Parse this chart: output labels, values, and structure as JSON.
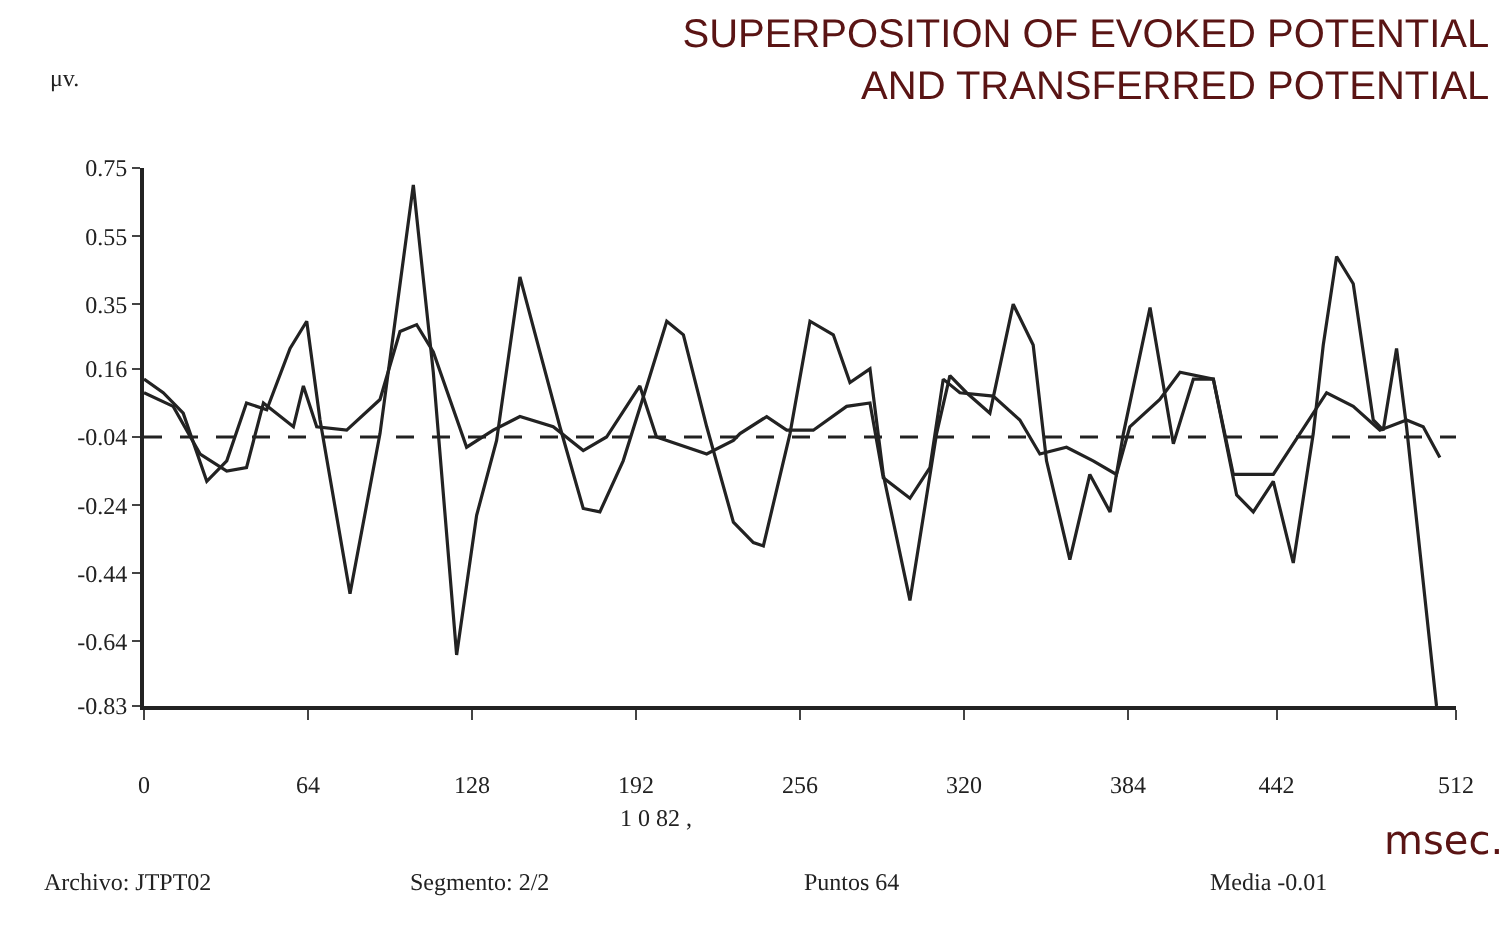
{
  "chart_data": {
    "type": "line",
    "title": "SUPERPOSITION OF EVOKED POTENTIAL\nAND TRANSFERRED POTENTIAL",
    "ylabel": "μv.",
    "xlabel": "msec.",
    "series": [
      {
        "color": "#222222",
        "x": [
          0,
          7.5,
          15.3,
          24.5,
          32.3,
          40,
          47.9,
          57,
          63.5,
          68.7,
          80.4,
          92.1,
          105.1,
          112.9,
          122,
          129.8,
          137.6,
          146.7,
          154.5,
          162.3,
          171.4,
          177.9,
          187,
          196.2,
          204,
          210.5,
          219.6,
          230,
          237.8,
          241.7,
          252.1,
          259.9,
          269,
          275.5,
          283.3,
          288.5,
          298.9,
          309.3,
          314.5,
          321,
          330.1,
          339.2,
          347,
          352.2,
          361.3,
          369.1,
          377,
          382.2,
          392.6,
          401.7,
          409.5,
          417.3,
          426.4,
          432.9,
          440.7,
          448.5,
          456.3,
          460.2,
          465.4,
          471.9,
          479.7,
          483.6,
          488.8,
          492.7,
          504.4
        ],
        "values": [
          0.13,
          0.09,
          0.03,
          -0.17,
          -0.11,
          0.06,
          0.04,
          0.22,
          0.3,
          0.01,
          -0.5,
          -0.03,
          0.7,
          0.15,
          -0.68,
          -0.27,
          -0.05,
          0.43,
          0.21,
          -0.01,
          -0.25,
          -0.26,
          -0.11,
          0.11,
          0.3,
          0.26,
          -0.01,
          -0.29,
          -0.35,
          -0.36,
          -0.03,
          0.3,
          0.26,
          0.12,
          0.16,
          -0.15,
          -0.52,
          -0.03,
          0.14,
          0.09,
          0.03,
          0.35,
          0.23,
          -0.11,
          -0.4,
          -0.15,
          -0.26,
          -0.03,
          0.34,
          -0.06,
          0.13,
          0.13,
          -0.21,
          -0.26,
          -0.17,
          -0.41,
          -0.03,
          0.23,
          0.49,
          0.41,
          0.01,
          -0.02,
          0.22,
          -0.01,
          -0.83
        ]
      },
      {
        "color": "#222222",
        "x": [
          0,
          11.4,
          21.9,
          32.3,
          40,
          46.6,
          58.3,
          62.2,
          67.4,
          79.1,
          92.1,
          99.9,
          106.4,
          112.9,
          125.9,
          136.3,
          146.7,
          159.7,
          171.4,
          180.5,
          193.5,
          200,
          219.6,
          230,
          232.6,
          243,
          250.8,
          261.2,
          274.2,
          283.3,
          288.5,
          298.9,
          306.7,
          311.9,
          318.4,
          331.4,
          341.8,
          349.6,
          360,
          370.4,
          379.5,
          384.7,
          396.4,
          404.3,
          417.3,
          425.1,
          440.7,
          451.1,
          461.5,
          471.9,
          482.3,
          492.7,
          499.2,
          505.7
        ],
        "values": [
          0.09,
          0.05,
          -0.09,
          -0.14,
          -0.13,
          0.06,
          -0.01,
          0.11,
          -0.01,
          -0.02,
          0.07,
          0.27,
          0.29,
          0.21,
          -0.07,
          -0.02,
          0.02,
          -0.01,
          -0.08,
          -0.04,
          0.11,
          -0.04,
          -0.09,
          -0.05,
          -0.03,
          0.02,
          -0.02,
          -0.02,
          0.05,
          0.06,
          -0.16,
          -0.22,
          -0.13,
          0.13,
          0.09,
          0.08,
          0.01,
          -0.09,
          -0.07,
          -0.11,
          -0.15,
          -0.01,
          0.07,
          0.15,
          0.13,
          -0.15,
          -0.15,
          -0.03,
          0.09,
          0.05,
          -0.02,
          0.01,
          -0.01,
          -0.1
        ]
      }
    ],
    "xlim": [
      0,
      512
    ],
    "xticks": [
      0,
      64,
      128,
      192,
      256,
      320,
      384,
      442,
      512
    ],
    "ylim": [
      -0.83,
      0.75
    ],
    "yticks": [
      0.75,
      0.55,
      0.35,
      0.16,
      -0.04,
      -0.24,
      -0.44,
      -0.64,
      -0.83
    ],
    "ref_lines": [
      {
        "axis": "y",
        "value": -0.04,
        "color": "#222222",
        "line_style": "dashed"
      }
    ],
    "annotations": [
      "1 0 82 ,",
      "Archivo: JTPT02",
      "Segmento: 2/2",
      "Puntos 64",
      "Media -0.01"
    ],
    "marker": "none",
    "line_style": "solid"
  }
}
